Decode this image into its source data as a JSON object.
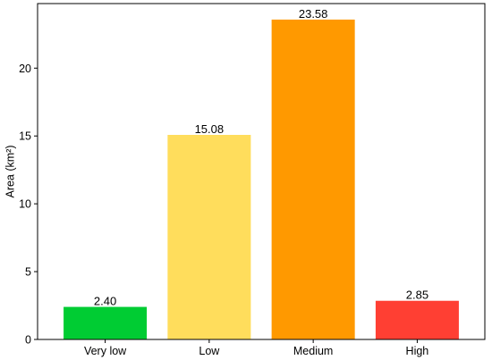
{
  "chart_data": {
    "type": "bar",
    "title": "",
    "xlabel": "",
    "ylabel": "Area (km²)",
    "categories": [
      "Very low",
      "Low",
      "Medium",
      "High"
    ],
    "values": [
      2.4,
      15.08,
      23.58,
      2.85
    ],
    "value_labels": [
      "2.40",
      "15.08",
      "23.58",
      "2.85"
    ],
    "colors": [
      "#00cc33",
      "#ffdd5c",
      "#ff9900",
      "#ff3f33"
    ],
    "ylim": [
      0,
      24.76
    ],
    "yticks": [
      0,
      5,
      10,
      15,
      20
    ],
    "grid": false,
    "legend": "none"
  }
}
